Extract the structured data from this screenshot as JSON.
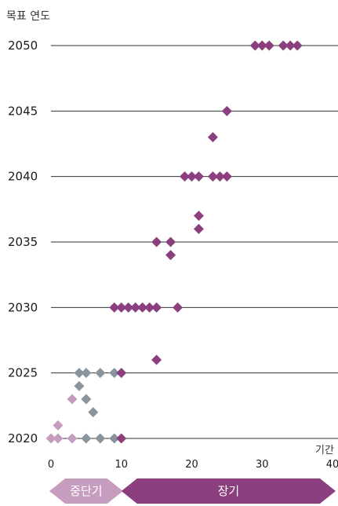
{
  "chart_data": {
    "type": "scatter",
    "ylabel": "목표 연도",
    "xlabel": "기간",
    "xlim": [
      0,
      40
    ],
    "ylim": [
      2020,
      2050
    ],
    "x_ticks": [
      "0",
      "10",
      "20",
      "30",
      "40"
    ],
    "y_ticks": [
      "2020",
      "2025",
      "2030",
      "2035",
      "2040",
      "2045",
      "2050"
    ],
    "grid": "horizontal",
    "colors": {
      "long_term": "#8b3f7e",
      "gray": "#8a949c",
      "light": "#c79dbf",
      "gridline": "#333333"
    },
    "series": [
      {
        "color_key": "light",
        "points": [
          {
            "x": 0,
            "y": 2020
          },
          {
            "x": 1,
            "y": 2020
          },
          {
            "x": 3,
            "y": 2020
          },
          {
            "x": 1,
            "y": 2021
          },
          {
            "x": 3,
            "y": 2023
          }
        ]
      },
      {
        "color_key": "gray",
        "points": [
          {
            "x": 5,
            "y": 2020
          },
          {
            "x": 7,
            "y": 2020
          },
          {
            "x": 9,
            "y": 2020
          },
          {
            "x": 6,
            "y": 2022
          },
          {
            "x": 5,
            "y": 2023
          },
          {
            "x": 4,
            "y": 2024
          },
          {
            "x": 4,
            "y": 2025
          },
          {
            "x": 5,
            "y": 2025
          },
          {
            "x": 7,
            "y": 2025
          },
          {
            "x": 9,
            "y": 2025
          }
        ]
      },
      {
        "color_key": "long_term",
        "points": [
          {
            "x": 10,
            "y": 2020
          },
          {
            "x": 10,
            "y": 2025
          },
          {
            "x": 15,
            "y": 2026
          },
          {
            "x": 9,
            "y": 2030
          },
          {
            "x": 10,
            "y": 2030
          },
          {
            "x": 11,
            "y": 2030
          },
          {
            "x": 12,
            "y": 2030
          },
          {
            "x": 13,
            "y": 2030
          },
          {
            "x": 14,
            "y": 2030
          },
          {
            "x": 15,
            "y": 2030
          },
          {
            "x": 18,
            "y": 2030
          },
          {
            "x": 17,
            "y": 2034
          },
          {
            "x": 15,
            "y": 2035
          },
          {
            "x": 17,
            "y": 2035
          },
          {
            "x": 21,
            "y": 2036
          },
          {
            "x": 21,
            "y": 2037
          },
          {
            "x": 19,
            "y": 2040
          },
          {
            "x": 20,
            "y": 2040
          },
          {
            "x": 21,
            "y": 2040
          },
          {
            "x": 23,
            "y": 2040
          },
          {
            "x": 24,
            "y": 2040
          },
          {
            "x": 25,
            "y": 2040
          },
          {
            "x": 23,
            "y": 2043
          },
          {
            "x": 25,
            "y": 2045
          },
          {
            "x": 29,
            "y": 2050
          },
          {
            "x": 30,
            "y": 2050
          },
          {
            "x": 31,
            "y": 2050
          },
          {
            "x": 33,
            "y": 2050
          },
          {
            "x": 34,
            "y": 2050
          },
          {
            "x": 35,
            "y": 2050
          }
        ]
      }
    ],
    "annotations": [
      {
        "text": "중단기",
        "x_range": [
          0,
          10
        ],
        "color_key": "light"
      },
      {
        "text": "장기",
        "x_range": [
          10,
          40
        ],
        "color_key": "long_term"
      }
    ]
  }
}
